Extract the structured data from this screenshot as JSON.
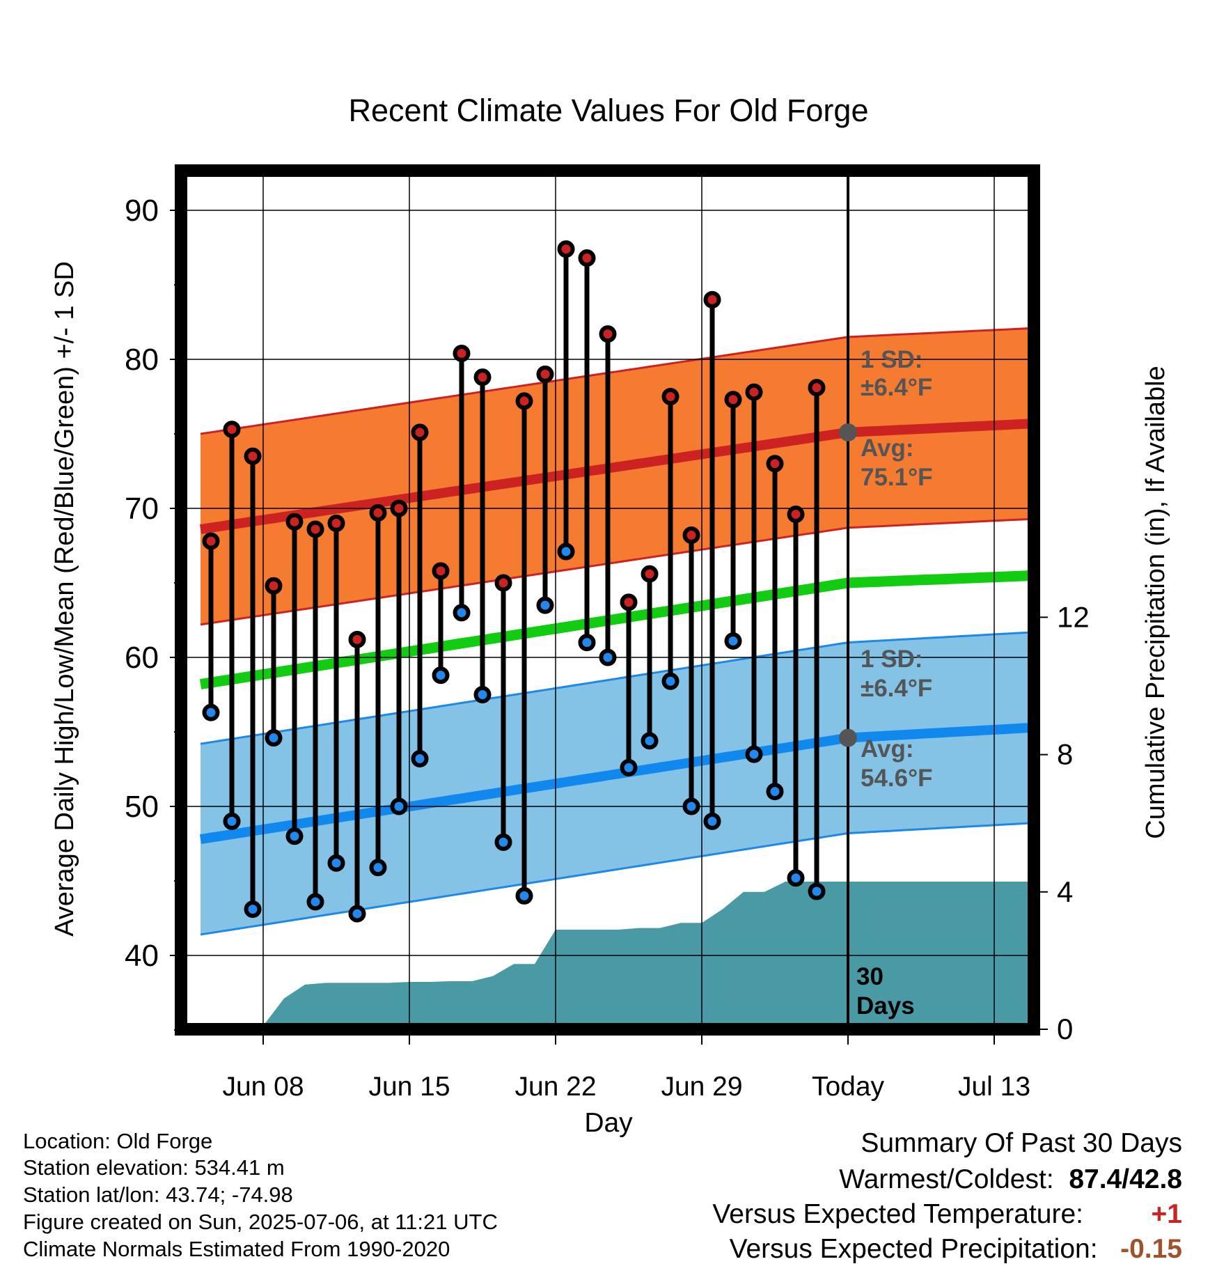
{
  "chart_data": {
    "type": "line",
    "title": "Recent Climate Values For Old Forge",
    "xlabel": "Day",
    "ylabel": "Average Daily High/Low/Mean (Red/Blue/Green) +/- 1 SD",
    "y2label": "Cumulative Precipitation (in), If Available",
    "ylim": [
      35,
      93
    ],
    "y2lim": [
      0,
      22
    ],
    "yticks": [
      "40",
      "50",
      "60",
      "70",
      "80",
      "90"
    ],
    "y2ticks": [
      "0",
      "4",
      "8",
      "12"
    ],
    "xticks": [
      {
        "day": 3,
        "label": "Jun 08"
      },
      {
        "day": 10,
        "label": "Jun 15"
      },
      {
        "day": 17,
        "label": "Jun 22"
      },
      {
        "day": 24,
        "label": "Jun 29"
      },
      {
        "day": 31,
        "label": "Today"
      },
      {
        "day": 38,
        "label": "Jul 13"
      }
    ],
    "today_marker": {
      "label": "30 Days",
      "line1": "30",
      "line2": "Days"
    },
    "series": [
      {
        "name": "High",
        "color": "#cc2222",
        "values": [
          67.8,
          75.3,
          73.5,
          64.8,
          69.1,
          68.6,
          69.0,
          61.2,
          69.7,
          70.0,
          75.1,
          65.8,
          80.4,
          78.8,
          65.0,
          77.2,
          79.0,
          87.4,
          86.8,
          81.7,
          63.7,
          65.6,
          77.5,
          68.2,
          84.0,
          77.3,
          77.8,
          73.0,
          69.6,
          78.1
        ]
      },
      {
        "name": "Low",
        "color": "#2288ee",
        "values": [
          56.3,
          49.0,
          43.1,
          54.6,
          48.0,
          43.6,
          46.2,
          42.8,
          45.9,
          50.0,
          53.2,
          58.8,
          63.0,
          57.5,
          47.6,
          44.0,
          63.5,
          67.1,
          61.0,
          60.0,
          52.6,
          54.4,
          58.4,
          50.0,
          49.0,
          61.1,
          53.5,
          51.0,
          45.2,
          44.3
        ]
      },
      {
        "name": "Avg High",
        "color": "#cc2222",
        "values": [
          [
            0,
            68.6
          ],
          [
            31,
            75.1
          ],
          [
            40,
            75.7
          ]
        ]
      },
      {
        "name": "High 1 SD",
        "color": "#f47b30",
        "sd": 6.4
      },
      {
        "name": "Avg Mean",
        "color": "#11cc11",
        "values": [
          [
            0,
            58.2
          ],
          [
            31,
            65.0
          ],
          [
            40,
            65.5
          ]
        ]
      },
      {
        "name": "Avg Low",
        "color": "#1188ee",
        "values": [
          [
            0,
            47.8
          ],
          [
            31,
            54.6
          ],
          [
            40,
            55.3
          ]
        ]
      },
      {
        "name": "Low 1 SD",
        "color": "#84c2e6",
        "sd": 6.4
      },
      {
        "name": "Cumulative Precipitation",
        "color": "#4a9aa5",
        "values": [
          [
            0.5,
            0
          ],
          [
            1,
            0.1
          ],
          [
            3,
            0.1
          ],
          [
            4,
            0.9
          ],
          [
            5,
            1.3
          ],
          [
            6,
            1.35
          ],
          [
            8,
            1.35
          ],
          [
            9,
            1.35
          ],
          [
            10,
            1.38
          ],
          [
            11,
            1.38
          ],
          [
            12,
            1.4
          ],
          [
            13,
            1.4
          ],
          [
            14,
            1.55
          ],
          [
            15,
            1.9
          ],
          [
            16,
            1.9
          ],
          [
            17,
            2.9
          ],
          [
            18,
            2.9
          ],
          [
            19,
            2.9
          ],
          [
            20,
            2.9
          ],
          [
            21,
            2.95
          ],
          [
            22,
            2.95
          ],
          [
            23,
            3.1
          ],
          [
            24,
            3.1
          ],
          [
            25,
            3.5
          ],
          [
            26,
            4.0
          ],
          [
            27,
            4.0
          ],
          [
            28,
            4.3
          ],
          [
            29,
            4.3
          ],
          [
            30,
            4.3
          ],
          [
            31,
            4.3
          ],
          [
            40,
            4.3
          ]
        ]
      }
    ],
    "annotations": {
      "high_sd": [
        "1 SD:",
        "±6.4°F"
      ],
      "high_avg": [
        "Avg:",
        "75.1°F"
      ],
      "low_sd": [
        "1 SD:",
        "±6.4°F"
      ],
      "low_avg": [
        "Avg:",
        "54.6°F"
      ]
    },
    "grid": true
  },
  "info": {
    "location": "Location: Old Forge",
    "elevation": "Station elevation: 534.41 m",
    "latlon": "Station lat/lon: 43.74; -74.98",
    "created": "Figure created on Sun, 2025-07-06, at 11:21 UTC",
    "normals": "Climate Normals Estimated From 1990-2020"
  },
  "summary": {
    "title": "Summary Of Past 30 Days",
    "warm_cold_label": "Warmest/Coldest:",
    "warm_cold_value": "87.4/42.8",
    "temp_label": "Versus Expected Temperature:",
    "temp_value": "+1",
    "temp_color": "#cc2222",
    "precip_label": "Versus Expected Precipitation:",
    "precip_value": "-0.15",
    "precip_color": "#a0522d"
  }
}
